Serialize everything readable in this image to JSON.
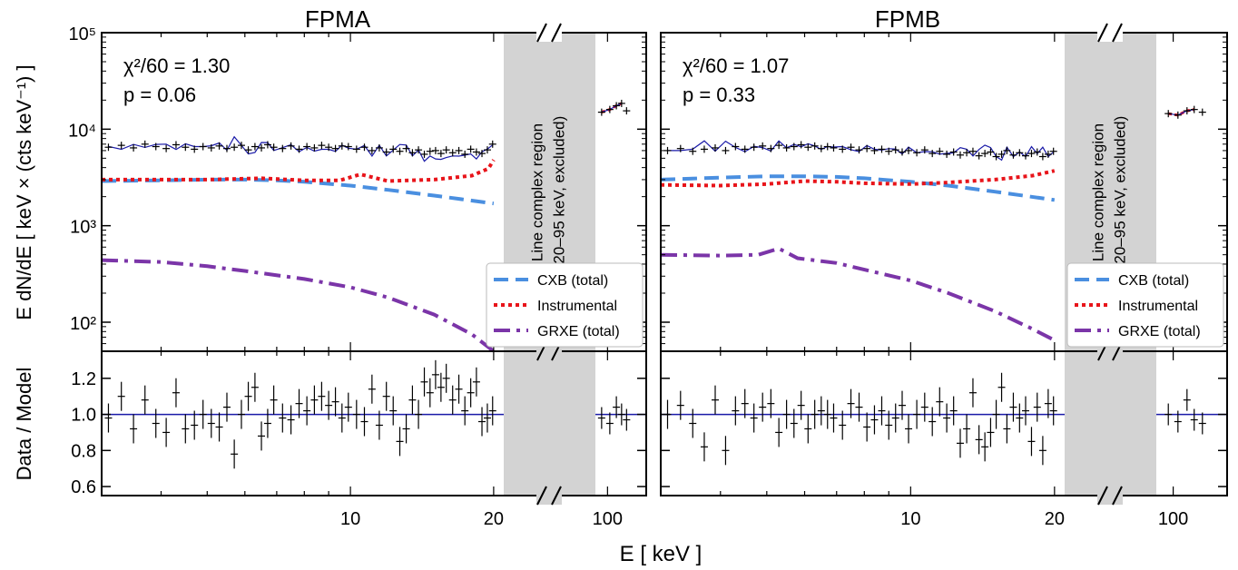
{
  "figure": {
    "xlabel": "E [ keV ]",
    "ylabel_top": "E dN/dE [ keV × (cts keV⁻¹) ]",
    "ylabel_bottom": "Data / Model",
    "gap_label_line1": "Line complex region",
    "gap_label_line2": "(20–95 keV, excluded)",
    "xticks_left": [
      "10",
      "20"
    ],
    "xticks_right": [
      "100"
    ],
    "yticks_top": [
      "10²",
      "10³",
      "10⁴",
      "10⁵"
    ],
    "yticks_bottom": [
      "0.6",
      "0.8",
      "1.0",
      "1.2"
    ],
    "legend": [
      "CXB (total)",
      "Instrumental",
      "GRXE (total)"
    ],
    "colors": {
      "cxb": "#4a8fe0",
      "instrumental": "#e8141a",
      "grxe": "#7b35a8",
      "model": "#1a1aa8",
      "gap": "#d3d3d3"
    }
  },
  "chart_data": [
    {
      "type": "line",
      "title": "FPMA",
      "stat_line": "χ²/60 = 1.30",
      "p_line": "p = 0.06",
      "x_scale": "log",
      "xlim_low": [
        3,
        21
      ],
      "xlim_high": [
        90,
        140
      ],
      "y_scale": "log",
      "ylim_top": [
        50,
        100000
      ],
      "ylim_bottom": [
        0.55,
        1.35
      ],
      "series": [
        {
          "name": "CXB (total)",
          "style": "dashed",
          "x": [
            3,
            4,
            5,
            6,
            7,
            8,
            10,
            12,
            15,
            20
          ],
          "y": [
            2900,
            2950,
            3000,
            3000,
            2950,
            2850,
            2600,
            2350,
            2050,
            1700
          ]
        },
        {
          "name": "Instrumental",
          "style": "dotted",
          "x": [
            3,
            5,
            6.5,
            8,
            9.5,
            10.5,
            12,
            15,
            18,
            19.5,
            20
          ],
          "y": [
            3000,
            3000,
            3100,
            2950,
            2950,
            3400,
            2900,
            3000,
            3300,
            3900,
            4800
          ]
        },
        {
          "name": "GRXE (total)",
          "style": "dashdot",
          "x": [
            3,
            4,
            5,
            6,
            8,
            10,
            12,
            15,
            18,
            20
          ],
          "y": [
            440,
            420,
            380,
            340,
            280,
            230,
            180,
            120,
            75,
            50
          ]
        }
      ],
      "data_low": {
        "x": [
          3.1,
          3.3,
          3.5,
          3.7,
          3.9,
          4.1,
          4.3,
          4.5,
          4.7,
          4.9,
          5.1,
          5.3,
          5.5,
          5.7,
          5.9,
          6.1,
          6.3,
          6.5,
          6.7,
          6.9,
          7.2,
          7.5,
          7.8,
          8.1,
          8.4,
          8.7,
          9.0,
          9.3,
          9.6,
          9.9,
          10.3,
          10.7,
          11.1,
          11.5,
          11.9,
          12.3,
          12.7,
          13.1,
          13.5,
          13.9,
          14.3,
          14.7,
          15.1,
          15.5,
          15.9,
          16.4,
          16.9,
          17.4,
          17.9,
          18.4,
          18.9,
          19.4,
          19.9
        ],
        "y": [
          6500,
          6800,
          6400,
          7000,
          6600,
          6300,
          6900,
          6500,
          6200,
          6600,
          6400,
          6700,
          6300,
          6500,
          6800,
          6100,
          6600,
          6400,
          6900,
          6500,
          6300,
          6700,
          6200,
          6600,
          6400,
          6800,
          6500,
          6300,
          6700,
          6600,
          6200,
          6500,
          6000,
          6400,
          5800,
          6200,
          5900,
          6300,
          5700,
          6100,
          5500,
          5900,
          6000,
          5600,
          6100,
          5700,
          6000,
          5500,
          6200,
          5800,
          5600,
          6100,
          7000
        ]
      },
      "ratio_low": [
        0.98,
        1.1,
        0.92,
        1.08,
        0.95,
        0.9,
        1.12,
        0.92,
        0.94,
        1.0,
        0.95,
        0.93,
        1.04,
        0.78,
        1.0,
        1.1,
        1.15,
        0.88,
        0.95,
        1.08,
        0.98,
        0.97,
        1.06,
        1.02,
        1.08,
        1.1,
        1.05,
        1.07,
        0.98,
        1.04,
        1.0,
        0.96,
        1.14,
        0.94,
        1.1,
        1.02,
        0.85,
        0.92,
        1.08,
        1.0,
        1.18,
        1.12,
        1.22,
        1.15,
        1.2,
        1.08,
        1.14,
        1.02,
        1.12,
        1.18,
        0.96,
        0.98,
        1.02
      ],
      "data_high": {
        "x": [
          95,
          102,
          108,
          113,
          118
        ],
        "y": [
          15000,
          16000,
          17500,
          18500,
          15500
        ]
      },
      "ratio_high": [
        0.98,
        0.95,
        1.04,
        1.0,
        0.97
      ]
    },
    {
      "type": "line",
      "title": "FPMB",
      "stat_line": "χ²/60 = 1.07",
      "p_line": "p = 0.33",
      "x_scale": "log",
      "xlim_low": [
        3,
        21
      ],
      "xlim_high": [
        90,
        140
      ],
      "y_scale": "log",
      "ylim_top": [
        50,
        100000
      ],
      "ylim_bottom": [
        0.55,
        1.35
      ],
      "series": [
        {
          "name": "CXB (total)",
          "style": "dashed",
          "x": [
            3,
            4,
            5,
            6,
            7,
            8,
            10,
            12,
            15,
            20
          ],
          "y": [
            3000,
            3150,
            3250,
            3250,
            3200,
            3100,
            2850,
            2600,
            2250,
            1850
          ]
        },
        {
          "name": "Instrumental",
          "style": "dotted",
          "x": [
            3,
            4,
            5,
            6,
            7,
            8,
            10,
            12,
            15,
            18,
            20
          ],
          "y": [
            2650,
            2600,
            2700,
            2900,
            2850,
            2750,
            2700,
            2800,
            3000,
            3300,
            3700
          ]
        },
        {
          "name": "GRXE (total)",
          "style": "dashdot",
          "x": [
            3,
            4,
            4.8,
            5.3,
            5.8,
            7,
            8,
            10,
            12,
            15,
            18,
            20
          ],
          "y": [
            500,
            490,
            500,
            580,
            460,
            410,
            350,
            270,
            200,
            130,
            85,
            65
          ]
        }
      ],
      "data_low": {
        "x": [
          3.1,
          3.3,
          3.5,
          3.7,
          3.9,
          4.1,
          4.3,
          4.5,
          4.7,
          4.9,
          5.1,
          5.3,
          5.5,
          5.7,
          5.9,
          6.1,
          6.3,
          6.5,
          6.7,
          6.9,
          7.2,
          7.5,
          7.8,
          8.1,
          8.4,
          8.7,
          9.0,
          9.3,
          9.6,
          9.9,
          10.3,
          10.7,
          11.1,
          11.5,
          11.9,
          12.3,
          12.7,
          13.1,
          13.5,
          13.9,
          14.3,
          14.7,
          15.1,
          15.5,
          15.9,
          16.4,
          16.9,
          17.4,
          17.9,
          18.4,
          18.9,
          19.4,
          19.9
        ],
        "y": [
          6000,
          6300,
          5900,
          6200,
          6400,
          6000,
          6600,
          6200,
          6500,
          6700,
          6300,
          6800,
          6400,
          6600,
          6900,
          6500,
          6700,
          6300,
          6600,
          6400,
          6200,
          6500,
          6100,
          6300,
          6000,
          6200,
          5900,
          6100,
          5800,
          6000,
          5700,
          6100,
          5600,
          5900,
          5500,
          5800,
          5400,
          5700,
          5900,
          5300,
          5600,
          5800,
          5200,
          5500,
          6000,
          5400,
          5700,
          5300,
          5600,
          5800,
          5200,
          5500,
          5900
        ]
      },
      "ratio_low": [
        1.0,
        1.05,
        0.95,
        0.82,
        1.08,
        0.8,
        1.02,
        1.06,
        0.98,
        1.04,
        1.06,
        0.9,
        1.0,
        0.95,
        1.05,
        0.92,
        1.0,
        1.02,
        1.0,
        0.98,
        0.94,
        1.06,
        1.04,
        0.93,
        0.97,
        1.02,
        0.94,
        0.98,
        1.05,
        0.92,
        1.0,
        1.04,
        0.96,
        1.07,
        0.98,
        1.02,
        0.84,
        0.92,
        1.12,
        0.86,
        0.82,
        0.9,
        1.0,
        1.15,
        0.92,
        1.04,
        0.98,
        1.02,
        0.85,
        1.04,
        0.8,
        1.06,
        1.02
      ],
      "data_high": {
        "x": [
          97,
          103,
          109,
          114,
          120
        ],
        "y": [
          14500,
          14000,
          15500,
          16000,
          15000
        ]
      },
      "ratio_high": [
        1.0,
        0.96,
        1.08,
        0.97,
        0.95
      ]
    }
  ]
}
